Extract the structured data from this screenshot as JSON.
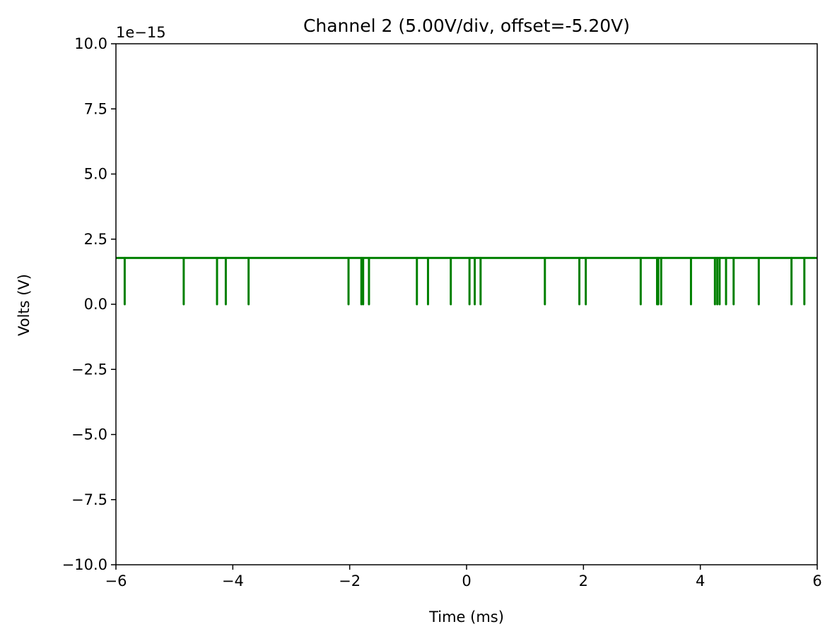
{
  "chart_data": {
    "type": "line",
    "title": "Channel 2 (5.00V/div, offset=-5.20V)",
    "xlabel": "Time (ms)",
    "ylabel": "Volts (V)",
    "y_offset_text": "1e−15",
    "xlim": [
      -6,
      6
    ],
    "ylim": [
      -10,
      10
    ],
    "y_scale_exponent": -15,
    "x_ticks": [
      -6,
      -4,
      -2,
      0,
      2,
      4,
      6
    ],
    "x_tick_labels": [
      "−6",
      "−4",
      "−2",
      "0",
      "2",
      "4",
      "6"
    ],
    "y_ticks": [
      -10,
      -7.5,
      -5,
      -2.5,
      0,
      2.5,
      5,
      7.5,
      10
    ],
    "y_tick_labels": [
      "−10.0",
      "−7.5",
      "−5.0",
      "−2.5",
      "0.0",
      "2.5",
      "5.0",
      "7.5",
      "10.0"
    ],
    "grid": false,
    "legend": false,
    "series": [
      {
        "color": "#008000",
        "baseline": 1.78,
        "dip_value": 0.0,
        "dip_times": [
          -5.85,
          -4.84,
          -4.27,
          -4.12,
          -3.73,
          -2.02,
          -1.8,
          -1.77,
          -1.67,
          -0.85,
          -0.66,
          -0.27,
          0.05,
          0.14,
          0.24,
          1.34,
          1.93,
          2.04,
          2.98,
          3.26,
          3.28,
          3.33,
          3.84,
          4.25,
          4.29,
          4.33,
          4.44,
          4.57,
          5.0,
          5.56,
          5.78
        ]
      }
    ]
  }
}
